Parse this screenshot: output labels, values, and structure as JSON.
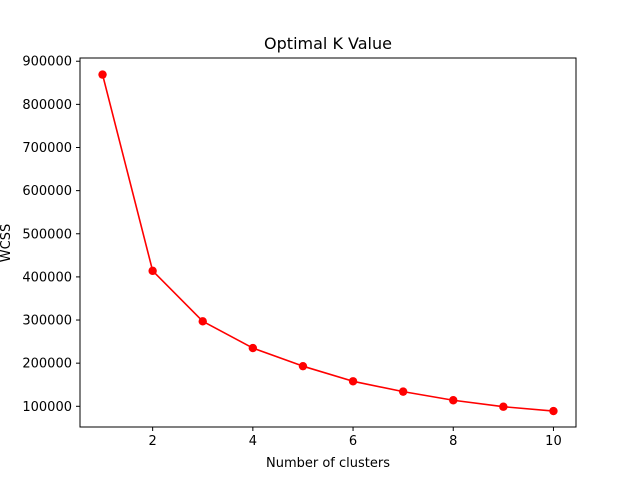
{
  "chart_data": {
    "type": "line",
    "title": "Optimal K Value",
    "xlabel": "Number of clusters",
    "ylabel": "WCSS",
    "x": [
      1,
      2,
      3,
      4,
      5,
      6,
      7,
      8,
      9,
      10
    ],
    "series": [
      {
        "values": [
          869000,
          414000,
          297000,
          235000,
          193000,
          158000,
          134000,
          114000,
          99000,
          89000
        ],
        "color": "#ff0000",
        "marker": "circle"
      }
    ],
    "xlim": [
      0.55,
      10.45
    ],
    "ylim": [
      52000,
      907500
    ],
    "xticks": [
      2,
      4,
      6,
      8,
      10
    ],
    "yticks": [
      100000,
      200000,
      300000,
      400000,
      500000,
      600000,
      700000,
      800000,
      900000
    ],
    "grid": false,
    "legend": "none"
  }
}
